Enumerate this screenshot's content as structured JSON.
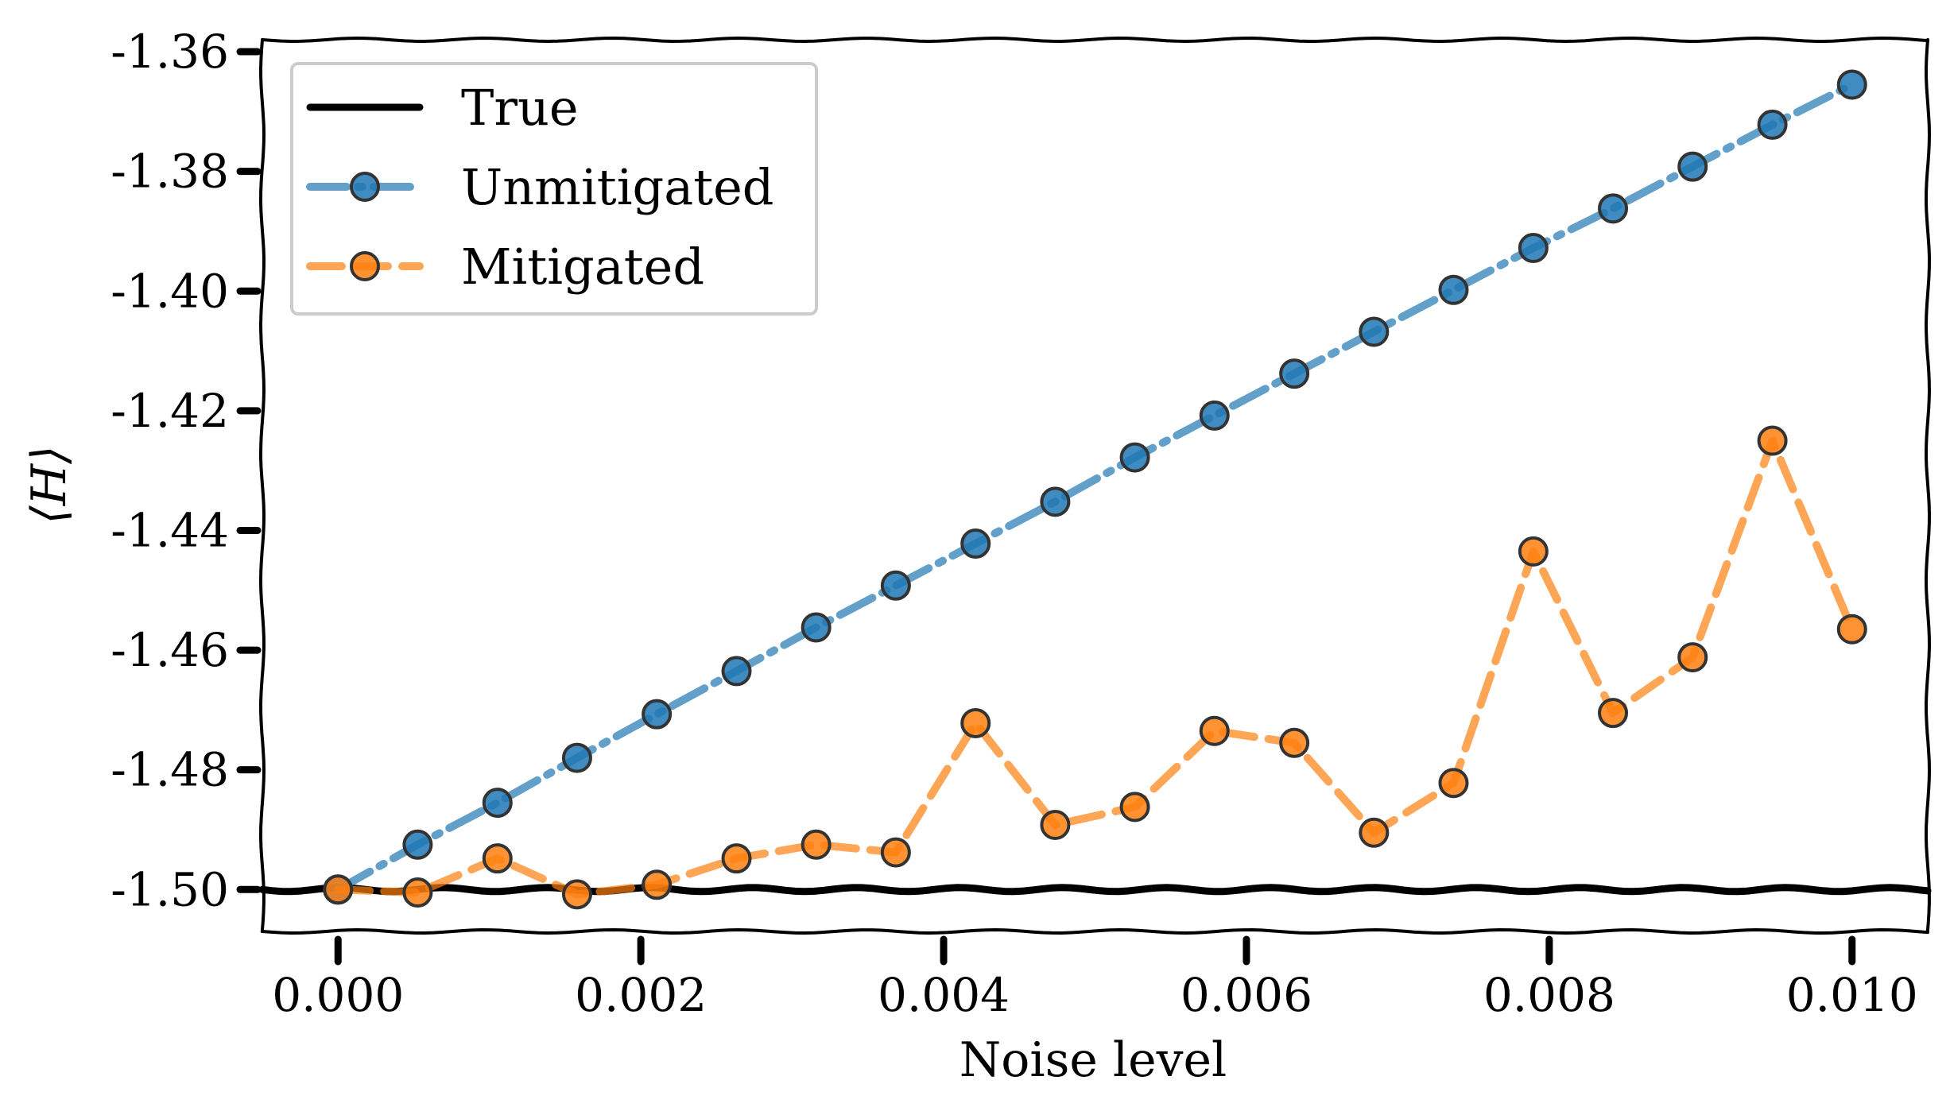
{
  "chart_data": {
    "type": "line",
    "xlabel": "Noise level",
    "ylabel": "⟨H⟩",
    "xlim": [
      -0.0005,
      0.0105
    ],
    "ylim": [
      -1.507,
      -1.358
    ],
    "x_ticks": [
      "0.000",
      "0.002",
      "0.004",
      "0.006",
      "0.008",
      "0.010"
    ],
    "x_tick_values": [
      0.0,
      0.002,
      0.004,
      0.006,
      0.008,
      0.01
    ],
    "y_ticks": [
      "-1.36",
      "-1.38",
      "-1.40",
      "-1.42",
      "-1.44",
      "-1.46",
      "-1.48",
      "-1.50"
    ],
    "y_tick_values": [
      -1.36,
      -1.38,
      -1.4,
      -1.42,
      -1.44,
      -1.46,
      -1.48,
      -1.5
    ],
    "grid": false,
    "legend_position": "top-left",
    "x": [
      0.0,
      0.000526,
      0.001053,
      0.001579,
      0.002105,
      0.002632,
      0.003158,
      0.003684,
      0.004211,
      0.004737,
      0.005263,
      0.005789,
      0.006316,
      0.006842,
      0.007368,
      0.007895,
      0.008421,
      0.008947,
      0.009474,
      0.01
    ],
    "series": [
      {
        "name": "True",
        "style": "solid",
        "color": "#000000",
        "values": [
          -1.5,
          -1.5,
          -1.5,
          -1.5,
          -1.5,
          -1.5,
          -1.5,
          -1.5,
          -1.5,
          -1.5,
          -1.5,
          -1.5,
          -1.5,
          -1.5,
          -1.5,
          -1.5,
          -1.5,
          -1.5,
          -1.5,
          -1.5
        ]
      },
      {
        "name": "Unmitigated",
        "style": "dash-dot",
        "color": "#1f77b4",
        "values": [
          -1.5,
          -1.4925,
          -1.4855,
          -1.478,
          -1.4707,
          -1.4635,
          -1.4562,
          -1.4492,
          -1.4422,
          -1.4352,
          -1.4278,
          -1.4208,
          -1.4138,
          -1.4068,
          -1.3998,
          -1.3928,
          -1.3862,
          -1.3792,
          -1.3722,
          -1.3655
        ]
      },
      {
        "name": "Mitigated",
        "style": "dashed",
        "color": "#ff7f0e",
        "values": [
          -1.5,
          -1.5005,
          -1.4948,
          -1.5008,
          -1.4992,
          -1.4948,
          -1.4925,
          -1.4938,
          -1.4722,
          -1.4892,
          -1.4862,
          -1.4735,
          -1.4755,
          -1.4905,
          -1.4822,
          -1.4435,
          -1.4705,
          -1.4612,
          -1.425,
          -1.4565
        ]
      }
    ]
  }
}
